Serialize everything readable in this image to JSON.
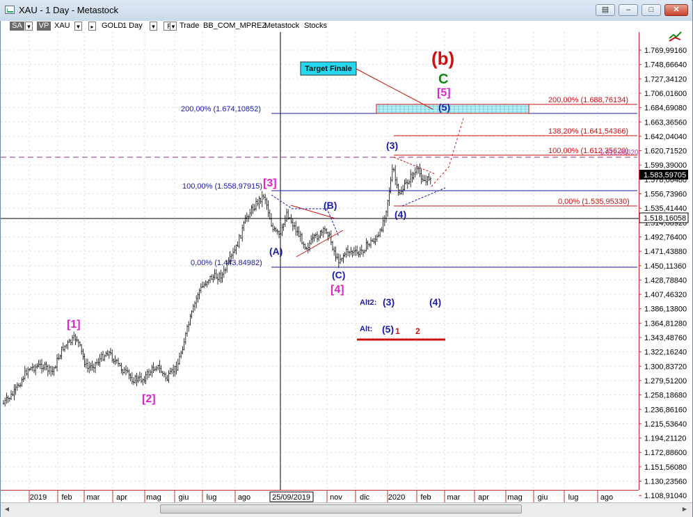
{
  "window": {
    "title": "XAU - 1 Day - Metastock",
    "buttons": [
      "▤",
      "–",
      "□",
      "✕"
    ]
  },
  "toolbar": {
    "sa_label": "SA",
    "vp_label": "VP",
    "symbol": "XAU",
    "security": "GOLD",
    "periodicity": "1 Day",
    "r_label": "R",
    "template": "Trade",
    "indicator_label": "BB_COM_MPREZ",
    "source": "Metastock",
    "type": "Stocks"
  },
  "chart_data": {
    "type": "candlestick",
    "instrument": "XAU",
    "periodicity": "1 Day",
    "y_axis": {
      "ticks": [
        "1.769,99160",
        "1.748,66640",
        "1.727,34120",
        "1.706,01600",
        "1.684,69080",
        "1.663,36560",
        "1.642,04040",
        "1.620,71520",
        "1.599,39000",
        "1.578,06480",
        "1.556,73960",
        "1.535,41440",
        "1.514,08920",
        "1.492,76400",
        "1.471,43880",
        "1.450,11360",
        "1.428,78840",
        "1.407,46320",
        "1.386,13800",
        "1.364,81280",
        "1.343,48760",
        "1.322,16240",
        "1.300,83720",
        "1.279,51200",
        "1.258,18680",
        "1.236,86160",
        "1.215,53640",
        "1.194,21120",
        "1.172,88600",
        "1.151,56080",
        "1.130,23560",
        "1.108,91040"
      ],
      "last_price_label": "1.583,59705",
      "crosshair_label": "1.518,16058",
      "range": [
        1108.9104,
        1769.9916
      ]
    },
    "x_axis": {
      "ticks": [
        "2019",
        "feb",
        "mar",
        "apr",
        "mag",
        "giu",
        "lug",
        "ago",
        "nov",
        "dic",
        "2020",
        "feb",
        "mar",
        "apr",
        "mag",
        "giu",
        "lug",
        "ago"
      ],
      "crosshair_label": "25/09/2019"
    },
    "fib_levels_left": [
      {
        "label": "200,00% (1.674,10852)",
        "value": 1674.10852
      },
      {
        "label": "100,00% (1.558,97915)",
        "value": 1558.97915
      },
      {
        "label": "0,00% (1.443,84982)",
        "value": 1443.84982
      }
    ],
    "fib_levels_right": [
      {
        "label": "200,00% (1.688,76134)",
        "value": 1688.76134
      },
      {
        "label": "138,20% (1.641,54366)",
        "value": 1641.54366
      },
      {
        "label": "100,00% (1.612,35620)",
        "value": 1612.3562
      },
      {
        "label": "0,00% (1.535,95330)",
        "value": 1535.9533
      }
    ],
    "target_box_label": "Target Finale",
    "wave_labels": {
      "b": "(b)",
      "c": "C",
      "five_bracket": "[5]",
      "five_paren": "(5)",
      "three_paren": "(3)",
      "four_paren": "(4)",
      "three_bracket": "[3]",
      "b_paren": "(B)",
      "a_paren": "(A)",
      "c_paren": "(C)",
      "four_bracket": "[4]",
      "one_bracket": "[1]",
      "two_bracket": "[2]",
      "alt2": "Alt2:",
      "alt2_three": "(3)",
      "alt2_four": "(4)",
      "alt": "Alt:",
      "alt_five": "(5)",
      "alt_one": "1",
      "alt_two": "2",
      "fib_extra": "1.612,35620"
    },
    "colors": {
      "magenta": "#dd22cc",
      "blue": "#1a1aa8",
      "red": "#cc1111",
      "green": "#118811",
      "candle": "#000000"
    }
  }
}
